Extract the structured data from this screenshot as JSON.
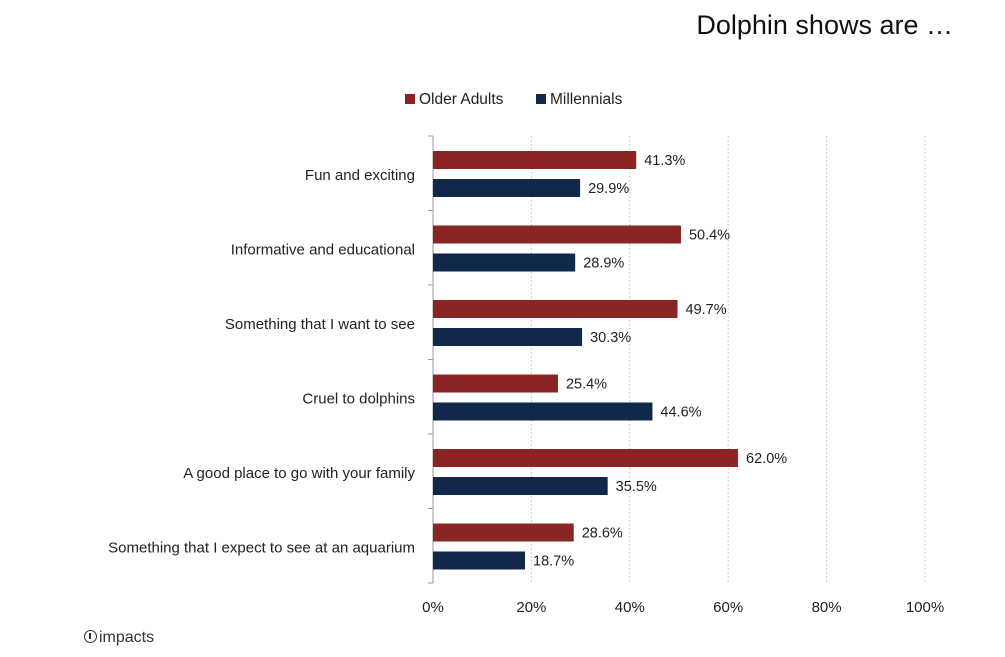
{
  "page": {
    "title": "Dolphin shows are …",
    "logo_text": "impacts"
  },
  "chart_data": {
    "type": "bar",
    "orientation": "horizontal",
    "title": "Dolphin shows are …",
    "categories": [
      "Fun and exciting",
      "Informative and educational",
      "Something that I want to see",
      "Cruel to dolphins",
      "A good place to go with your family",
      "Something that I expect to see at an aquarium"
    ],
    "series": [
      {
        "name": "Older Adults",
        "color": "#8b2524",
        "values": [
          41.3,
          50.4,
          49.7,
          25.4,
          62.0,
          28.6
        ],
        "labels": [
          "41.3%",
          "50.4%",
          "49.7%",
          "25.4%",
          "62.0%",
          "28.6%"
        ]
      },
      {
        "name": "Millennials",
        "color": "#10294a",
        "values": [
          29.9,
          28.9,
          30.3,
          44.6,
          35.5,
          18.7
        ],
        "labels": [
          "29.9%",
          "28.9%",
          "30.3%",
          "44.6%",
          "35.5%",
          "18.7%"
        ]
      }
    ],
    "xlim": [
      0,
      100
    ],
    "xticks": [
      0,
      20,
      40,
      60,
      80,
      100
    ],
    "xtick_labels": [
      "0%",
      "20%",
      "40%",
      "60%",
      "80%",
      "100%"
    ],
    "xlabel": "",
    "ylabel": "",
    "grid": true,
    "legend_position": "top"
  }
}
